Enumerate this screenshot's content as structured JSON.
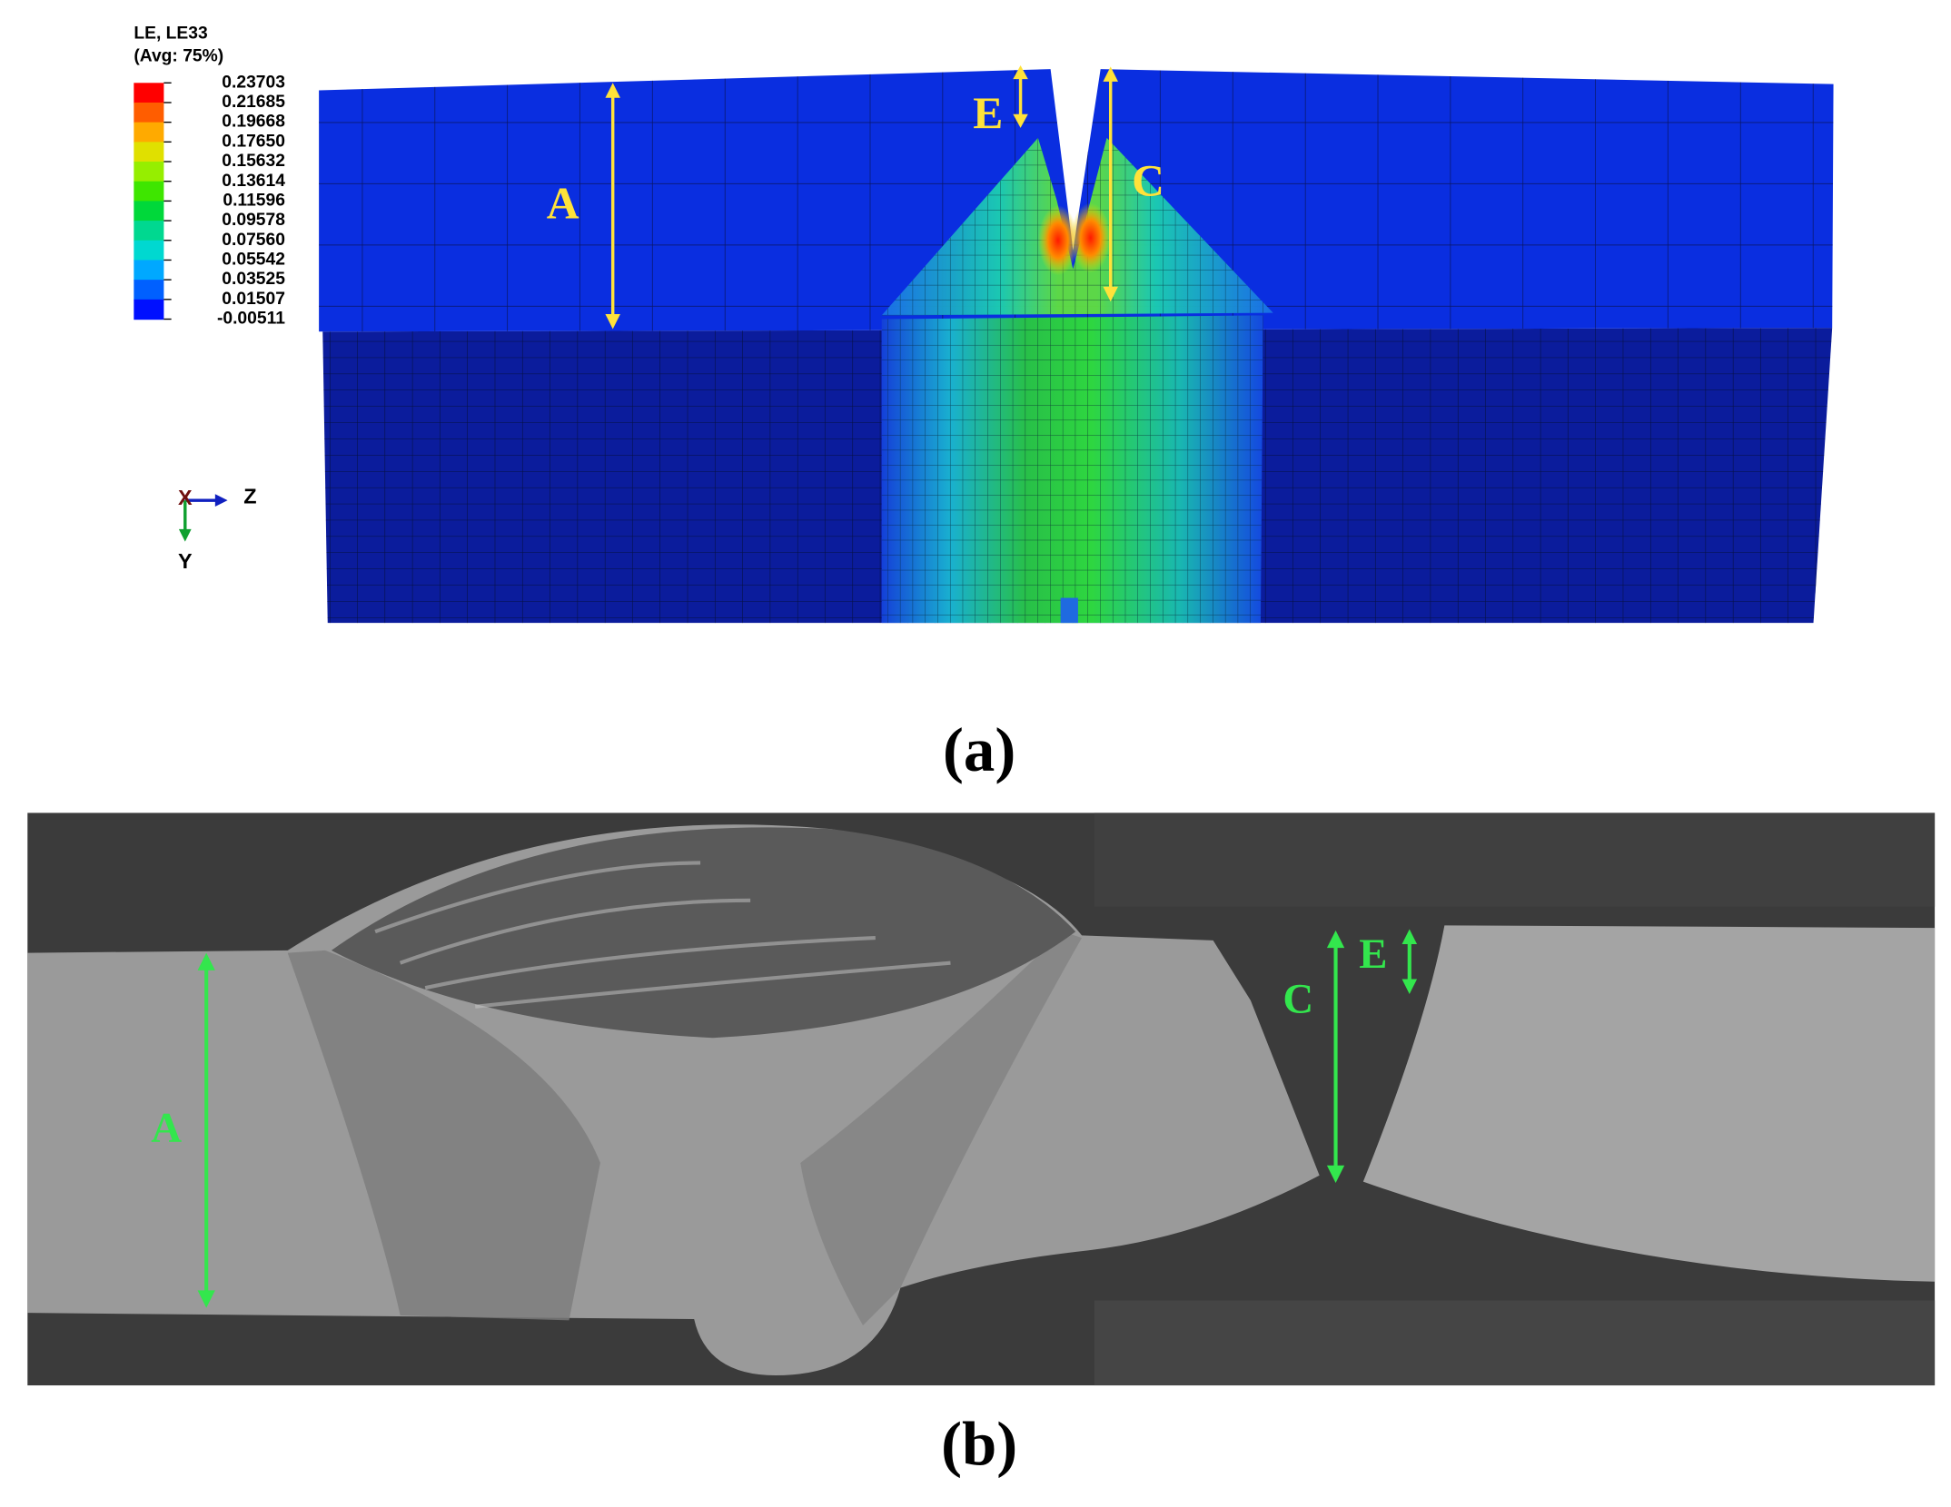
{
  "figure_a": {
    "legend": {
      "title": "LE, LE33",
      "subtitle": "(Avg: 75%)",
      "levels": [
        "0.23703",
        "0.21685",
        "0.19668",
        "0.17650",
        "0.15632",
        "0.13614",
        "0.11596",
        "0.09578",
        "0.07560",
        "0.05542",
        "0.03525",
        "0.01507",
        "-0.00511"
      ],
      "colors": [
        "#ff0000",
        "#ff5d00",
        "#ffaa00",
        "#e0e000",
        "#96ee00",
        "#3ee600",
        "#00d83a",
        "#00d890",
        "#00d8d0",
        "#00a8ff",
        "#0060ff",
        "#0010ff"
      ]
    },
    "labels": [
      "A",
      "E",
      "C"
    ],
    "axes": [
      "X",
      "Z",
      "Y"
    ],
    "caption": "(a)"
  },
  "figure_b": {
    "labels": [
      "A",
      "C",
      "E"
    ],
    "caption": "(b)"
  }
}
